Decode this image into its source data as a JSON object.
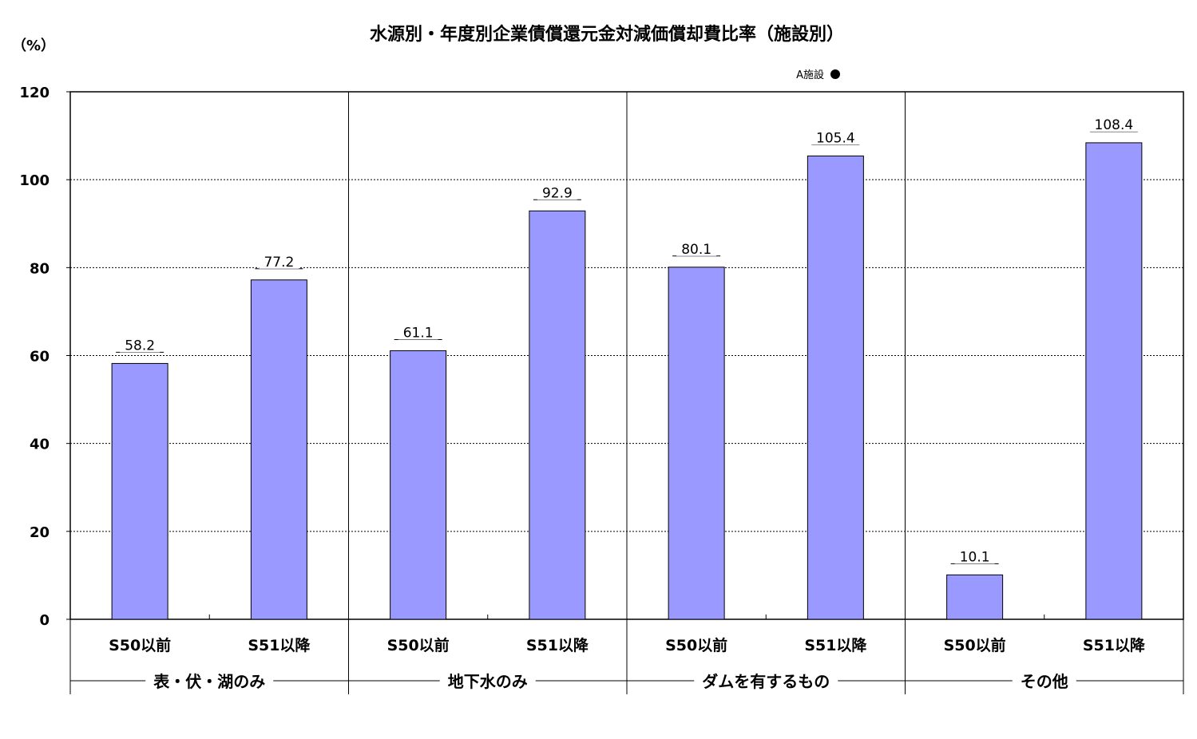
{
  "chart_data": {
    "type": "bar",
    "title": "水源別・年度別企業債償還元金対減価償却費比率（施設別）",
    "y_unit": "（%）",
    "ylim": [
      0,
      120
    ],
    "y_ticks": [
      "0",
      "20",
      "40",
      "60",
      "80",
      "100",
      "120"
    ],
    "grid": true,
    "legend": {
      "label": "A施設",
      "marker": "circle",
      "position": "top-right"
    },
    "bar_color": "#9999ff",
    "groups": [
      {
        "label": "表・伏・湖のみ",
        "categories": [
          "S50以前",
          "S51以降"
        ],
        "values": [
          58.2,
          77.2
        ],
        "data_labels": [
          "58.2",
          "77.2"
        ]
      },
      {
        "label": "地下水のみ",
        "categories": [
          "S50以前",
          "S51以降"
        ],
        "values": [
          61.1,
          92.9
        ],
        "data_labels": [
          "61.1",
          "92.9"
        ]
      },
      {
        "label": "ダムを有するもの",
        "categories": [
          "S50以前",
          "S51以降"
        ],
        "values": [
          80.1,
          105.4
        ],
        "data_labels": [
          "80.1",
          "105.4"
        ]
      },
      {
        "label": "その他",
        "categories": [
          "S50以前",
          "S51以降"
        ],
        "values": [
          10.1,
          108.4
        ],
        "data_labels": [
          "10.1",
          "108.4"
        ]
      }
    ]
  }
}
